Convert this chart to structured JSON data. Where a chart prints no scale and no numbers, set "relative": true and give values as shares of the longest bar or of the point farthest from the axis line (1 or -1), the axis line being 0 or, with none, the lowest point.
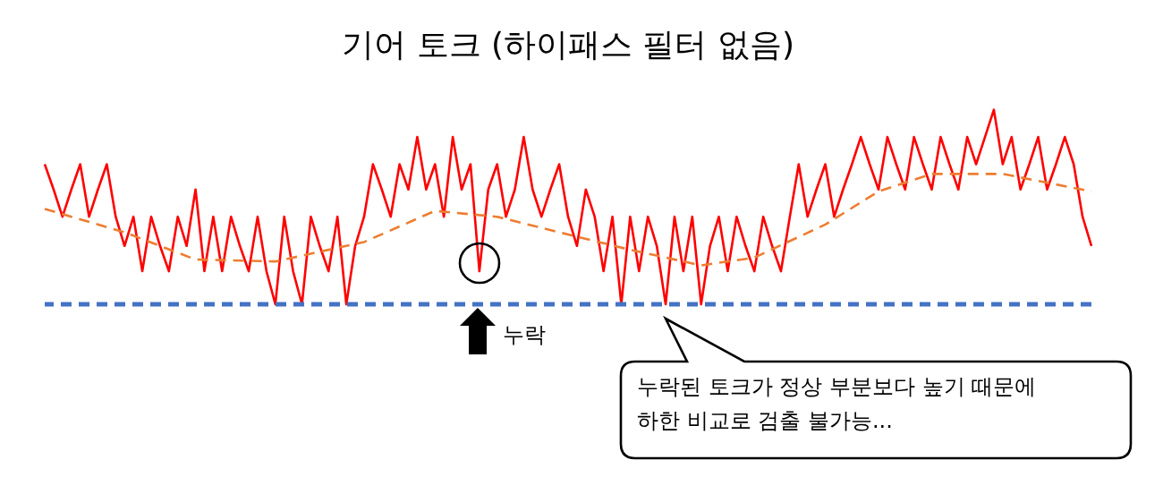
{
  "chart_data": {
    "type": "line",
    "title": "기어 토크 (하이패스 필터 없음)",
    "relative": true,
    "categories": [
      null,
      null,
      null,
      null,
      null,
      null,
      null,
      null,
      null,
      null,
      null,
      null,
      null,
      null,
      null,
      null,
      null,
      null,
      null,
      null,
      null,
      null,
      null,
      null,
      null,
      null,
      null,
      null,
      null,
      null,
      null,
      null,
      null,
      null,
      null,
      null,
      null,
      null,
      null,
      null,
      null,
      null,
      null,
      null,
      null,
      null,
      null,
      null,
      null,
      null,
      null,
      null,
      null,
      null,
      null,
      null,
      null,
      null,
      null,
      null,
      null,
      null,
      null,
      null,
      null,
      null,
      null,
      null,
      null,
      null,
      null,
      null,
      null,
      null,
      null,
      null,
      null,
      null,
      null,
      null,
      null,
      null,
      null,
      null,
      null,
      null,
      null,
      null,
      null,
      null,
      null,
      null,
      null,
      null,
      null,
      null,
      null,
      null,
      null,
      null,
      null,
      null,
      null,
      null,
      null,
      null,
      null,
      null,
      null,
      null,
      null,
      null,
      null,
      null,
      null,
      null,
      null,
      null,
      null
    ],
    "series": [
      {
        "color": "#ff0000",
        "line_style": "solid",
        "values": [
          0.72,
          0.59,
          0.45,
          0.59,
          0.72,
          0.45,
          0.59,
          0.72,
          0.45,
          0.3,
          0.45,
          0.17,
          0.45,
          0.3,
          0.17,
          0.45,
          0.3,
          0.59,
          0.17,
          0.45,
          0.17,
          0.45,
          0.3,
          0.17,
          0.45,
          0.17,
          0,
          0.45,
          0.17,
          0,
          0.45,
          0.3,
          0.17,
          0.45,
          0,
          0.3,
          0.45,
          0.72,
          0.59,
          0.45,
          0.72,
          0.59,
          0.86,
          0.59,
          0.72,
          0.45,
          0.86,
          0.59,
          0.72,
          0.17,
          0.59,
          0.72,
          0.45,
          0.59,
          0.86,
          0.59,
          0.45,
          0.59,
          0.72,
          0.45,
          0.3,
          0.59,
          0.45,
          0.17,
          0.45,
          0,
          0.45,
          0.17,
          0.45,
          0.3,
          0,
          0.45,
          0.17,
          0.45,
          0,
          0.3,
          0.45,
          0.17,
          0.45,
          0.3,
          0.17,
          0.45,
          0.3,
          0.17,
          0.45,
          0.72,
          0.45,
          0.59,
          0.72,
          0.45,
          0.59,
          0.72,
          0.86,
          0.72,
          0.59,
          0.86,
          0.72,
          0.59,
          0.86,
          0.72,
          0.59,
          0.86,
          0.72,
          0.59,
          0.86,
          0.72,
          0.86,
          1.0,
          0.72,
          0.86,
          0.59,
          0.72,
          0.86,
          0.59,
          0.72,
          0.86,
          0.72,
          0.45,
          0.3
        ]
      },
      {
        "color": "#ed7d31",
        "line_style": "dashed",
        "values": [
          0.49,
          null,
          null,
          null,
          null,
          null,
          null,
          null,
          null,
          0.37,
          null,
          null,
          null,
          null,
          null,
          null,
          null,
          0.23,
          null,
          null,
          null,
          null,
          null,
          null,
          null,
          null,
          0.22,
          null,
          null,
          null,
          null,
          null,
          null,
          null,
          null,
          null,
          0.32,
          null,
          null,
          null,
          null,
          null,
          null,
          null,
          0.48,
          null,
          null,
          null,
          null,
          null,
          null,
          0.45,
          null,
          null,
          null,
          null,
          null,
          null,
          0.37,
          null,
          null,
          null,
          null,
          null,
          null,
          null,
          0.28,
          null,
          null,
          null,
          null,
          null,
          null,
          null,
          0.2,
          null,
          null,
          null,
          null,
          null,
          0.24,
          null,
          null,
          null,
          null,
          null,
          null,
          null,
          0.41,
          null,
          null,
          null,
          null,
          null,
          0.58,
          null,
          null,
          null,
          null,
          null,
          0.67,
          null,
          null,
          null,
          null,
          null,
          null,
          null,
          0.67,
          null,
          null,
          null,
          null,
          null,
          null,
          null,
          null,
          null,
          0.58
        ]
      }
    ],
    "ref_lines": [
      {
        "axis": "y",
        "value": 0,
        "color": "#4472c4",
        "line_style": "dashed"
      }
    ],
    "annotations": [
      "누락",
      "누락된 토크가 정상 부분보다 높기 때문에",
      "하한 비교로 검출 불가능..."
    ]
  }
}
